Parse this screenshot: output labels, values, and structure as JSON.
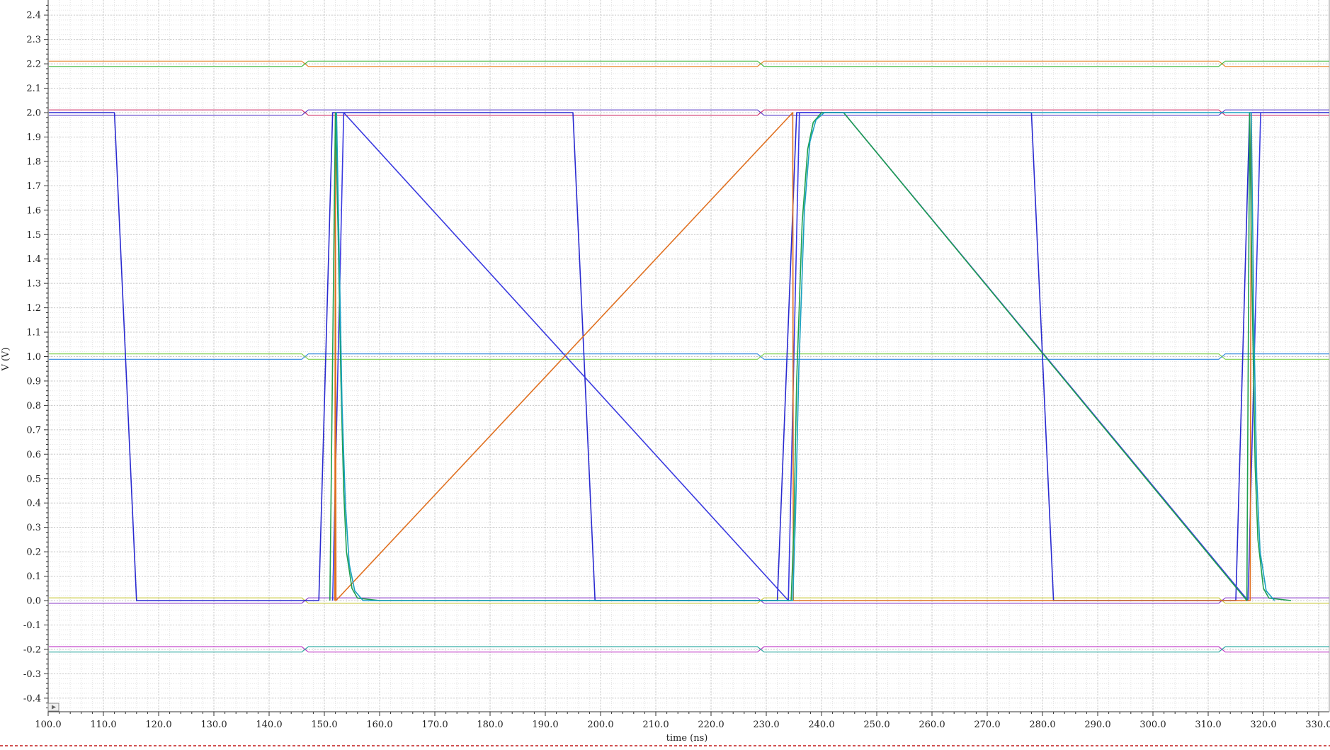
{
  "chart_data": {
    "type": "line",
    "title": "",
    "xlabel": "time (ns)",
    "ylabel": "V (V)",
    "xlim": [
      100.0,
      332.0
    ],
    "ylim": [
      -0.45,
      2.45
    ],
    "grid": true,
    "legend": "none",
    "x_ticks": [
      "100.0",
      "110.0",
      "120.0",
      "130.0",
      "140.0",
      "150.0",
      "160.0",
      "170.0",
      "180.0",
      "190.0",
      "200.0",
      "210.0",
      "220.0",
      "230.0",
      "240.0",
      "250.0",
      "260.0",
      "270.0",
      "280.0",
      "290.0",
      "300.0",
      "310.0",
      "320.0",
      "330.0"
    ],
    "y_ticks": [
      "-0.4",
      "-0.3",
      "-0.2",
      "-0.1",
      "0.0",
      "0.1",
      "0.2",
      "0.3",
      "0.4",
      "0.5",
      "0.6",
      "0.7",
      "0.8",
      "0.9",
      "1.0",
      "1.1",
      "1.2",
      "1.3",
      "1.4",
      "1.5",
      "1.6",
      "1.7",
      "1.8",
      "1.9",
      "2.0",
      "2.1",
      "2.2",
      "2.3",
      "2.4"
    ],
    "bus_signals": [
      {
        "color": "#e8842a",
        "mid": 2.2,
        "half": 0.011,
        "start": 100.0,
        "end": 332.0,
        "transitions": [
          146.5,
          229.0,
          312.5
        ]
      },
      {
        "color": "#44bb44",
        "mid": 2.2,
        "half": 0.011,
        "start": 100.0,
        "end": 332.0,
        "transitions": [
          146.5,
          229.0,
          312.5
        ],
        "flip": true
      },
      {
        "color": "#d0306a",
        "mid": 2.0,
        "half": 0.011,
        "start": 100.0,
        "end": 332.0,
        "transitions": [
          146.5,
          229.0,
          312.5
        ]
      },
      {
        "color": "#5a3cc8",
        "mid": 2.0,
        "half": 0.011,
        "start": 100.0,
        "end": 332.0,
        "transitions": [
          146.5,
          229.0,
          312.5
        ],
        "flip": true
      },
      {
        "color": "#2e86de",
        "mid": 1.0,
        "half": 0.011,
        "start": 100.0,
        "end": 332.0,
        "transitions": [
          146.5,
          229.0,
          312.5
        ],
        "flip": true
      },
      {
        "color": "#7ccf4a",
        "mid": 1.0,
        "half": 0.011,
        "start": 100.0,
        "end": 332.0,
        "transitions": [
          146.5,
          229.0,
          312.5
        ]
      },
      {
        "color": "#8a3cc8",
        "mid": 0.0,
        "half": 0.011,
        "start": 100.0,
        "end": 332.0,
        "transitions": [
          146.5,
          229.0,
          312.5
        ],
        "flip": true
      },
      {
        "color": "#c8c83a",
        "mid": 0.0,
        "half": 0.011,
        "start": 100.0,
        "end": 332.0,
        "transitions": [
          146.5,
          229.0,
          312.5
        ]
      },
      {
        "color": "#c03cc8",
        "mid": -0.2,
        "half": 0.011,
        "start": 100.0,
        "end": 332.0,
        "transitions": [
          146.5,
          229.0,
          312.5
        ]
      },
      {
        "color": "#2aa8a0",
        "mid": -0.2,
        "half": 0.011,
        "start": 100.0,
        "end": 332.0,
        "transitions": [
          146.5,
          229.0,
          312.5
        ],
        "flip": true
      }
    ],
    "series": [
      {
        "color": "#2a2ad0",
        "x": [
          100.0,
          112.0,
          116.0,
          149.0,
          151.5,
          195.0,
          199.0,
          232.0,
          235.5,
          278.0,
          282.0,
          315.0,
          317.5,
          332.0
        ],
        "y": [
          2.0,
          2.0,
          0.0,
          0.0,
          2.0,
          2.0,
          0.0,
          0.0,
          2.0,
          2.0,
          0.0,
          0.0,
          2.0,
          2.0
        ]
      },
      {
        "color": "#3a3ae0",
        "x": [
          151.5,
          153.5,
          234.0,
          236.0,
          244.0,
          317.2,
          319.5
        ],
        "y": [
          0.0,
          2.0,
          0.0,
          2.0,
          2.0,
          0.0,
          2.0
        ]
      },
      {
        "color": "#e07020",
        "x": [
          151.9,
          152.0,
          152.1,
          234.8,
          234.9,
          317.6,
          317.8
        ],
        "y": [
          0.0,
          2.0,
          0.0,
          2.0,
          0.0,
          0.0,
          2.0
        ]
      },
      {
        "color": "#20a050",
        "x": [
          151.0,
          152.0,
          152.5,
          153.0,
          153.5,
          154.0,
          155.0,
          156.0,
          160.0,
          234.5,
          235.0,
          235.5,
          236.5,
          237.5,
          238.5,
          240.0,
          244.0,
          317.0,
          317.5,
          318.0,
          318.5,
          319.0,
          320.0,
          321.0,
          325.0
        ],
        "y": [
          0.0,
          2.0,
          1.5,
          0.9,
          0.45,
          0.2,
          0.05,
          0.01,
          0.0,
          0.0,
          0.3,
          0.9,
          1.55,
          1.85,
          1.96,
          2.0,
          2.0,
          0.0,
          2.0,
          1.2,
          0.55,
          0.25,
          0.05,
          0.01,
          0.0
        ]
      },
      {
        "color": "#18a0c0",
        "x": [
          152.2,
          152.7,
          153.2,
          153.8,
          154.5,
          155.5,
          157.0,
          234.8,
          235.3,
          235.9,
          236.9,
          237.9,
          239.0,
          240.5,
          317.8,
          318.3,
          318.8,
          319.4,
          320.5,
          322.0
        ],
        "y": [
          2.0,
          1.4,
          0.8,
          0.4,
          0.15,
          0.04,
          0.0,
          0.0,
          0.35,
          0.95,
          1.6,
          1.88,
          1.97,
          2.0,
          2.0,
          1.1,
          0.5,
          0.2,
          0.04,
          0.0
        ]
      }
    ]
  }
}
